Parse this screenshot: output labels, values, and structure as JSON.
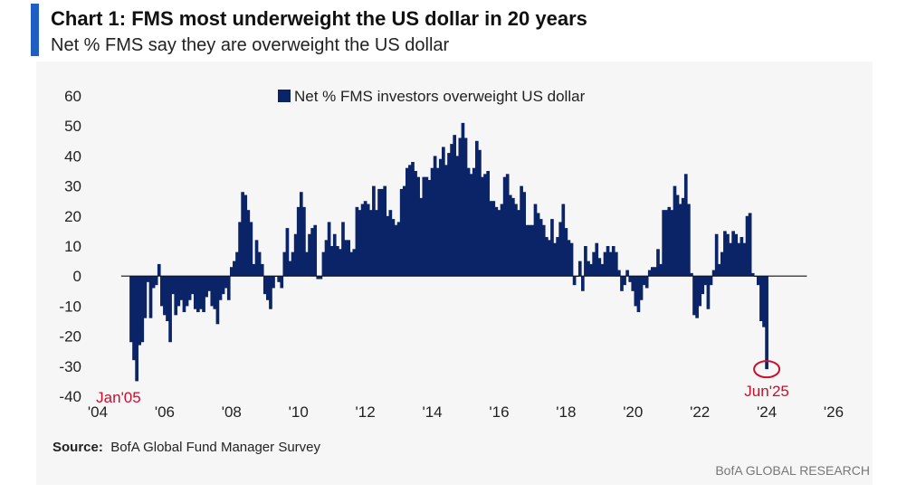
{
  "header": {
    "title": "Chart 1: FMS most underweight the US dollar in 20 years",
    "subtitle": "Net % FMS say they are overweight the US dollar",
    "accent_color": "#1f5fc4"
  },
  "footer": {
    "source_label": "Source:",
    "source_text": "BofA Global Fund Manager Survey",
    "credit": "BofA GLOBAL RESEARCH"
  },
  "chart_data": {
    "type": "bar",
    "title": "",
    "xlabel": "",
    "ylabel": "",
    "ylim": [
      -40,
      60
    ],
    "xlim": [
      2004,
      2026
    ],
    "yticks": [
      60,
      50,
      40,
      30,
      20,
      10,
      0,
      -10,
      -20,
      -30,
      -40
    ],
    "xticks": [
      "'04",
      "'06",
      "'08",
      "'10",
      "'12",
      "'14",
      "'16",
      "'18",
      "'20",
      "'22",
      "'24",
      "'26"
    ],
    "grid": false,
    "legend_position": "top-center",
    "bar_color": "#0b2468",
    "annotation_color": "#c8102e",
    "series": [
      {
        "name": "Net % FMS investors overweight US dollar",
        "points": [
          [
            2005.0,
            -22
          ],
          [
            2005.083,
            -28
          ],
          [
            2005.167,
            -35
          ],
          [
            2005.25,
            -23
          ],
          [
            2005.333,
            -22
          ],
          [
            2005.417,
            -14
          ],
          [
            2005.5,
            -2
          ],
          [
            2005.583,
            -14
          ],
          [
            2005.667,
            -4
          ],
          [
            2005.75,
            -3
          ],
          [
            2005.833,
            4
          ],
          [
            2005.917,
            -10
          ],
          [
            2006.0,
            -13
          ],
          [
            2006.083,
            -15
          ],
          [
            2006.167,
            -22
          ],
          [
            2006.25,
            -6
          ],
          [
            2006.333,
            -13
          ],
          [
            2006.417,
            -10
          ],
          [
            2006.5,
            -8
          ],
          [
            2006.583,
            -12
          ],
          [
            2006.667,
            -10
          ],
          [
            2006.75,
            -8
          ],
          [
            2006.833,
            -6
          ],
          [
            2006.917,
            -11
          ],
          [
            2007.0,
            -12
          ],
          [
            2007.083,
            -11
          ],
          [
            2007.167,
            -12
          ],
          [
            2007.25,
            -7
          ],
          [
            2007.333,
            -5
          ],
          [
            2007.417,
            -10
          ],
          [
            2007.5,
            -11
          ],
          [
            2007.583,
            -16
          ],
          [
            2007.667,
            -8
          ],
          [
            2007.75,
            -6
          ],
          [
            2007.833,
            -4
          ],
          [
            2007.917,
            -8
          ],
          [
            2008.0,
            3
          ],
          [
            2008.083,
            5
          ],
          [
            2008.167,
            8
          ],
          [
            2008.25,
            18
          ],
          [
            2008.333,
            28
          ],
          [
            2008.417,
            27
          ],
          [
            2008.5,
            22
          ],
          [
            2008.583,
            18
          ],
          [
            2008.667,
            4
          ],
          [
            2008.75,
            12
          ],
          [
            2008.833,
            8
          ],
          [
            2008.917,
            4
          ],
          [
            2009.0,
            -6
          ],
          [
            2009.083,
            -8
          ],
          [
            2009.167,
            -11
          ],
          [
            2009.25,
            -4
          ],
          [
            2009.333,
            0
          ],
          [
            2009.417,
            -2
          ],
          [
            2009.5,
            -4
          ],
          [
            2009.583,
            8
          ],
          [
            2009.667,
            16
          ],
          [
            2009.75,
            5
          ],
          [
            2009.833,
            8
          ],
          [
            2009.917,
            14
          ],
          [
            2010.0,
            23
          ],
          [
            2010.083,
            28
          ],
          [
            2010.167,
            23
          ],
          [
            2010.25,
            8
          ],
          [
            2010.333,
            14
          ],
          [
            2010.417,
            16
          ],
          [
            2010.5,
            17
          ],
          [
            2010.583,
            -1
          ],
          [
            2010.667,
            -1
          ],
          [
            2010.75,
            8
          ],
          [
            2010.833,
            12
          ],
          [
            2010.917,
            18
          ],
          [
            2011.0,
            10
          ],
          [
            2011.083,
            14
          ],
          [
            2011.167,
            10
          ],
          [
            2011.25,
            9
          ],
          [
            2011.333,
            18
          ],
          [
            2011.417,
            12
          ],
          [
            2011.5,
            12
          ],
          [
            2011.583,
            8
          ],
          [
            2011.667,
            9
          ],
          [
            2011.75,
            23
          ],
          [
            2011.833,
            22
          ],
          [
            2011.917,
            24
          ],
          [
            2012.0,
            25
          ],
          [
            2012.083,
            24
          ],
          [
            2012.167,
            22
          ],
          [
            2012.25,
            30
          ],
          [
            2012.333,
            22
          ],
          [
            2012.417,
            29
          ],
          [
            2012.5,
            29
          ],
          [
            2012.583,
            30
          ],
          [
            2012.667,
            20
          ],
          [
            2012.75,
            22
          ],
          [
            2012.833,
            19
          ],
          [
            2012.917,
            17
          ],
          [
            2013.0,
            18
          ],
          [
            2013.083,
            29
          ],
          [
            2013.167,
            30
          ],
          [
            2013.25,
            36
          ],
          [
            2013.333,
            37
          ],
          [
            2013.417,
            38
          ],
          [
            2013.5,
            35
          ],
          [
            2013.583,
            33
          ],
          [
            2013.667,
            26
          ],
          [
            2013.75,
            33
          ],
          [
            2013.833,
            33
          ],
          [
            2013.917,
            32
          ],
          [
            2014.0,
            36
          ],
          [
            2014.083,
            40
          ],
          [
            2014.167,
            36
          ],
          [
            2014.25,
            39
          ],
          [
            2014.333,
            43
          ],
          [
            2014.417,
            37
          ],
          [
            2014.5,
            41
          ],
          [
            2014.583,
            44
          ],
          [
            2014.667,
            47
          ],
          [
            2014.75,
            40
          ],
          [
            2014.833,
            46
          ],
          [
            2014.917,
            51
          ],
          [
            2015.0,
            46
          ],
          [
            2015.083,
            36
          ],
          [
            2015.167,
            34
          ],
          [
            2015.25,
            36
          ],
          [
            2015.333,
            45
          ],
          [
            2015.417,
            42
          ],
          [
            2015.5,
            33
          ],
          [
            2015.583,
            34
          ],
          [
            2015.667,
            35
          ],
          [
            2015.75,
            25
          ],
          [
            2015.833,
            25
          ],
          [
            2015.917,
            23
          ],
          [
            2016.0,
            22
          ],
          [
            2016.083,
            24
          ],
          [
            2016.167,
            33
          ],
          [
            2016.25,
            34
          ],
          [
            2016.333,
            27
          ],
          [
            2016.417,
            26
          ],
          [
            2016.5,
            24
          ],
          [
            2016.583,
            22
          ],
          [
            2016.667,
            30
          ],
          [
            2016.75,
            28
          ],
          [
            2016.833,
            17
          ],
          [
            2016.917,
            17
          ],
          [
            2017.0,
            17
          ],
          [
            2017.083,
            24
          ],
          [
            2017.167,
            21
          ],
          [
            2017.25,
            19
          ],
          [
            2017.333,
            17
          ],
          [
            2017.417,
            13
          ],
          [
            2017.5,
            12
          ],
          [
            2017.583,
            19
          ],
          [
            2017.667,
            11
          ],
          [
            2017.75,
            13
          ],
          [
            2017.833,
            18
          ],
          [
            2017.917,
            24
          ],
          [
            2018.0,
            16
          ],
          [
            2018.083,
            12
          ],
          [
            2018.167,
            11
          ],
          [
            2018.25,
            -3
          ],
          [
            2018.333,
            0
          ],
          [
            2018.417,
            5
          ],
          [
            2018.5,
            -5
          ],
          [
            2018.583,
            10
          ],
          [
            2018.667,
            5
          ],
          [
            2018.75,
            4
          ],
          [
            2018.833,
            8
          ],
          [
            2018.917,
            11
          ],
          [
            2019.0,
            6
          ],
          [
            2019.083,
            4
          ],
          [
            2019.167,
            8
          ],
          [
            2019.25,
            10
          ],
          [
            2019.333,
            8
          ],
          [
            2019.417,
            10
          ],
          [
            2019.5,
            8
          ],
          [
            2019.583,
            2
          ],
          [
            2019.667,
            -5
          ],
          [
            2019.75,
            -3
          ],
          [
            2019.833,
            2
          ],
          [
            2019.917,
            -2
          ],
          [
            2020.0,
            -5
          ],
          [
            2020.083,
            -10
          ],
          [
            2020.167,
            -12
          ],
          [
            2020.25,
            -8
          ],
          [
            2020.333,
            -3
          ],
          [
            2020.417,
            -4
          ],
          [
            2020.5,
            2
          ],
          [
            2020.583,
            3
          ],
          [
            2020.667,
            3
          ],
          [
            2020.75,
            9
          ],
          [
            2020.833,
            4
          ],
          [
            2020.917,
            22
          ],
          [
            2021.0,
            22
          ],
          [
            2021.083,
            23
          ],
          [
            2021.167,
            22
          ],
          [
            2021.25,
            30
          ],
          [
            2021.333,
            27
          ],
          [
            2021.417,
            24
          ],
          [
            2021.5,
            26
          ],
          [
            2021.583,
            34
          ],
          [
            2021.667,
            24
          ],
          [
            2021.75,
            1
          ],
          [
            2021.833,
            -13
          ],
          [
            2021.917,
            -14
          ],
          [
            2022.0,
            -10
          ],
          [
            2022.083,
            -6
          ],
          [
            2022.167,
            -3
          ],
          [
            2022.25,
            -11
          ],
          [
            2022.333,
            -3
          ],
          [
            2022.417,
            2
          ],
          [
            2022.5,
            14
          ],
          [
            2022.583,
            4
          ],
          [
            2022.667,
            8
          ],
          [
            2022.75,
            15
          ],
          [
            2022.833,
            14
          ],
          [
            2022.917,
            11
          ],
          [
            2023.0,
            15
          ],
          [
            2023.083,
            14
          ],
          [
            2023.167,
            11
          ],
          [
            2023.25,
            13
          ],
          [
            2023.333,
            11
          ],
          [
            2023.417,
            20
          ],
          [
            2023.5,
            21
          ],
          [
            2023.583,
            1
          ],
          [
            2023.667,
            0
          ],
          [
            2023.75,
            -3
          ],
          [
            2023.833,
            -15
          ],
          [
            2023.917,
            -17
          ],
          [
            2024.0,
            -31
          ]
        ]
      }
    ],
    "annotations": [
      {
        "label": "Jan'05",
        "x": 2005.0,
        "y": -35,
        "target": "minimum 2005"
      },
      {
        "label": "Jun'25",
        "x": 2024.0,
        "y": -31,
        "target": "latest reading, circled"
      }
    ]
  }
}
